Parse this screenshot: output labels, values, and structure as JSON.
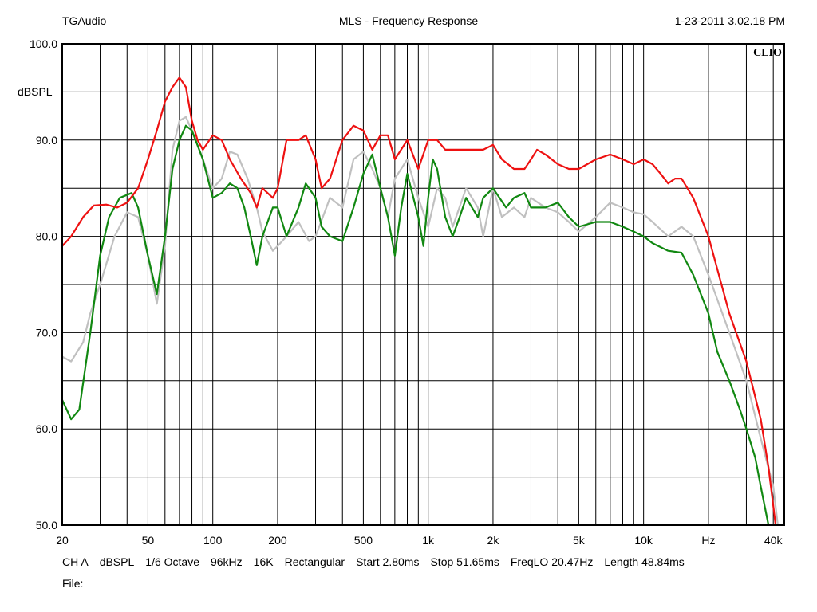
{
  "header": {
    "brand": "TGAudio",
    "title": "MLS - Frequency Response",
    "timestamp": "1-23-2011 3.02.18 PM"
  },
  "logo": "CLIO",
  "footer": {
    "params": [
      "CH A",
      "dBSPL",
      "1/6 Octave",
      "96kHz",
      "16K",
      "Rectangular",
      "Start 2.80ms",
      "Stop 51.65ms",
      "FreqLO 20.47Hz",
      "Length 48.84ms"
    ],
    "file_label": "File:"
  },
  "colors": {
    "red": "#ee1111",
    "green": "#118811",
    "gray": "#c0c0c0",
    "frame": "#000000"
  },
  "chart_data": {
    "type": "line",
    "x_scale": "log",
    "xlim": [
      20,
      45000
    ],
    "ylim": [
      50,
      100
    ],
    "ylabel": "dBSPL",
    "xlabel": "Hz",
    "y_tick_labels": [
      {
        "value": 100,
        "label": "100.0"
      },
      {
        "value": 90,
        "label": "90.0"
      },
      {
        "value": 80,
        "label": "80.0"
      },
      {
        "value": 70,
        "label": "70.0"
      },
      {
        "value": 60,
        "label": "60.0"
      },
      {
        "value": 50,
        "label": "50.0"
      }
    ],
    "x_tick_labels": [
      {
        "value": 20,
        "label": "20"
      },
      {
        "value": 50,
        "label": "50"
      },
      {
        "value": 100,
        "label": "100"
      },
      {
        "value": 200,
        "label": "200"
      },
      {
        "value": 500,
        "label": "500"
      },
      {
        "value": 1000,
        "label": "1k"
      },
      {
        "value": 2000,
        "label": "2k"
      },
      {
        "value": 5000,
        "label": "5k"
      },
      {
        "value": 10000,
        "label": "10k"
      },
      {
        "value": 20000,
        "label": "Hz"
      },
      {
        "value": 40000,
        "label": "40k"
      }
    ],
    "series": [
      {
        "color": "#c0c0c0",
        "points": [
          [
            20,
            67.5
          ],
          [
            22,
            67
          ],
          [
            25,
            69
          ],
          [
            27,
            72
          ],
          [
            30,
            75
          ],
          [
            35,
            80
          ],
          [
            40,
            82.5
          ],
          [
            45,
            82
          ],
          [
            50,
            78
          ],
          [
            55,
            73
          ],
          [
            60,
            79
          ],
          [
            65,
            89
          ],
          [
            70,
            92
          ],
          [
            75,
            92.4
          ],
          [
            80,
            91
          ],
          [
            90,
            88
          ],
          [
            100,
            85
          ],
          [
            110,
            86
          ],
          [
            120,
            88.8
          ],
          [
            130,
            88.5
          ],
          [
            145,
            86
          ],
          [
            160,
            83
          ],
          [
            170,
            80.5
          ],
          [
            190,
            78.5
          ],
          [
            200,
            79
          ],
          [
            220,
            80
          ],
          [
            250,
            81.5
          ],
          [
            280,
            79.5
          ],
          [
            300,
            80
          ],
          [
            350,
            84
          ],
          [
            400,
            83
          ],
          [
            450,
            88
          ],
          [
            500,
            88.8
          ],
          [
            550,
            87
          ],
          [
            600,
            85
          ],
          [
            650,
            82
          ],
          [
            700,
            86
          ],
          [
            800,
            88
          ],
          [
            900,
            84
          ],
          [
            1000,
            81
          ],
          [
            1100,
            85
          ],
          [
            1200,
            84
          ],
          [
            1300,
            81
          ],
          [
            1500,
            85
          ],
          [
            1700,
            83
          ],
          [
            1800,
            80
          ],
          [
            2000,
            85
          ],
          [
            2200,
            82
          ],
          [
            2500,
            83
          ],
          [
            2800,
            82
          ],
          [
            3000,
            84
          ],
          [
            3500,
            83
          ],
          [
            4000,
            82.5
          ],
          [
            4500,
            81.5
          ],
          [
            5000,
            80.5
          ],
          [
            6000,
            82
          ],
          [
            7000,
            83.5
          ],
          [
            8000,
            83
          ],
          [
            9000,
            82.5
          ],
          [
            10000,
            82.3
          ],
          [
            11000,
            81.5
          ],
          [
            13000,
            80
          ],
          [
            15000,
            81
          ],
          [
            17000,
            80
          ],
          [
            20000,
            76
          ],
          [
            25000,
            70
          ],
          [
            30000,
            65
          ],
          [
            35000,
            59
          ],
          [
            40000,
            54
          ],
          [
            42000,
            50
          ]
        ]
      },
      {
        "color": "#118811",
        "points": [
          [
            20,
            63
          ],
          [
            22,
            61
          ],
          [
            24,
            62
          ],
          [
            27,
            70
          ],
          [
            30,
            78
          ],
          [
            33,
            82
          ],
          [
            37,
            84
          ],
          [
            42,
            84.5
          ],
          [
            45,
            83
          ],
          [
            50,
            78
          ],
          [
            55,
            74
          ],
          [
            60,
            80
          ],
          [
            65,
            87
          ],
          [
            70,
            90
          ],
          [
            75,
            91.5
          ],
          [
            80,
            91
          ],
          [
            90,
            88
          ],
          [
            100,
            84
          ],
          [
            110,
            84.5
          ],
          [
            120,
            85.5
          ],
          [
            130,
            85
          ],
          [
            140,
            83
          ],
          [
            150,
            80
          ],
          [
            160,
            77
          ],
          [
            170,
            80
          ],
          [
            190,
            83
          ],
          [
            200,
            83
          ],
          [
            220,
            80
          ],
          [
            250,
            83
          ],
          [
            270,
            85.5
          ],
          [
            300,
            84
          ],
          [
            320,
            81
          ],
          [
            350,
            80
          ],
          [
            400,
            79.5
          ],
          [
            450,
            83
          ],
          [
            500,
            86.5
          ],
          [
            550,
            88.5
          ],
          [
            600,
            85
          ],
          [
            650,
            82
          ],
          [
            700,
            78
          ],
          [
            750,
            83
          ],
          [
            800,
            86.5
          ],
          [
            900,
            82
          ],
          [
            950,
            79
          ],
          [
            1000,
            84
          ],
          [
            1050,
            88
          ],
          [
            1100,
            87
          ],
          [
            1200,
            82
          ],
          [
            1300,
            80
          ],
          [
            1400,
            82
          ],
          [
            1500,
            84
          ],
          [
            1700,
            82
          ],
          [
            1800,
            84
          ],
          [
            2000,
            85
          ],
          [
            2300,
            83
          ],
          [
            2500,
            84
          ],
          [
            2800,
            84.5
          ],
          [
            3000,
            83
          ],
          [
            3500,
            83
          ],
          [
            4000,
            83.5
          ],
          [
            4500,
            82
          ],
          [
            5000,
            81
          ],
          [
            6000,
            81.5
          ],
          [
            7000,
            81.5
          ],
          [
            8000,
            81
          ],
          [
            9000,
            80.5
          ],
          [
            10000,
            80
          ],
          [
            11000,
            79.3
          ],
          [
            13000,
            78.5
          ],
          [
            15000,
            78.3
          ],
          [
            17000,
            76
          ],
          [
            20000,
            72
          ],
          [
            22000,
            68
          ],
          [
            25000,
            65
          ],
          [
            28000,
            62
          ],
          [
            30000,
            60
          ],
          [
            33000,
            57
          ],
          [
            35000,
            54
          ],
          [
            38000,
            50
          ]
        ]
      },
      {
        "color": "#ee1111",
        "points": [
          [
            20,
            79
          ],
          [
            22,
            80
          ],
          [
            25,
            82
          ],
          [
            28,
            83.2
          ],
          [
            32,
            83.3
          ],
          [
            36,
            83
          ],
          [
            40,
            83.5
          ],
          [
            45,
            85
          ],
          [
            50,
            88
          ],
          [
            55,
            91
          ],
          [
            60,
            94
          ],
          [
            65,
            95.5
          ],
          [
            70,
            96.5
          ],
          [
            75,
            95.5
          ],
          [
            80,
            92
          ],
          [
            85,
            90
          ],
          [
            90,
            89
          ],
          [
            100,
            90.5
          ],
          [
            110,
            90
          ],
          [
            120,
            88
          ],
          [
            135,
            86
          ],
          [
            150,
            84.5
          ],
          [
            160,
            83
          ],
          [
            170,
            85
          ],
          [
            190,
            84
          ],
          [
            200,
            85
          ],
          [
            220,
            90
          ],
          [
            250,
            90
          ],
          [
            270,
            90.5
          ],
          [
            300,
            88
          ],
          [
            320,
            85
          ],
          [
            350,
            86
          ],
          [
            400,
            90
          ],
          [
            450,
            91.5
          ],
          [
            500,
            91
          ],
          [
            550,
            89
          ],
          [
            600,
            90.5
          ],
          [
            650,
            90.5
          ],
          [
            700,
            88
          ],
          [
            800,
            90
          ],
          [
            900,
            87
          ],
          [
            1000,
            90
          ],
          [
            1100,
            90
          ],
          [
            1200,
            89
          ],
          [
            1500,
            89
          ],
          [
            1800,
            89
          ],
          [
            2000,
            89.5
          ],
          [
            2200,
            88
          ],
          [
            2500,
            87
          ],
          [
            2800,
            87
          ],
          [
            3000,
            88
          ],
          [
            3200,
            89
          ],
          [
            3500,
            88.5
          ],
          [
            4000,
            87.5
          ],
          [
            4500,
            87
          ],
          [
            5000,
            87
          ],
          [
            6000,
            88
          ],
          [
            7000,
            88.5
          ],
          [
            8000,
            88
          ],
          [
            9000,
            87.5
          ],
          [
            10000,
            88
          ],
          [
            11000,
            87.5
          ],
          [
            12000,
            86.5
          ],
          [
            13000,
            85.5
          ],
          [
            14000,
            86
          ],
          [
            15000,
            86
          ],
          [
            17000,
            84
          ],
          [
            20000,
            80
          ],
          [
            25000,
            72
          ],
          [
            30000,
            67
          ],
          [
            35000,
            61
          ],
          [
            38000,
            56
          ],
          [
            40000,
            52
          ],
          [
            41000,
            50
          ]
        ]
      }
    ]
  }
}
